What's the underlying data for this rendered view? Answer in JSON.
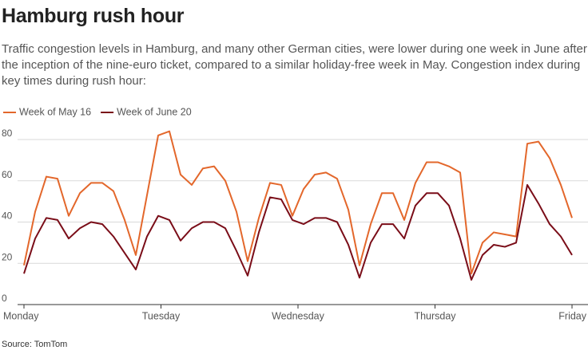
{
  "chart_data": {
    "type": "line",
    "title": "Hamburg rush hour",
    "subtitle": "Traffic congestion levels in Hamburg, and many other German cities, were lower during one week in June after the inception of the nine-euro ticket, compared to a similar holiday-free week in May. Congestion index during key times during rush hour:",
    "source": "Source: TomTom",
    "x": [
      0,
      1,
      2,
      3,
      4,
      5,
      6,
      7,
      8,
      9,
      10,
      11,
      12,
      13,
      14,
      15,
      16,
      17,
      18,
      19,
      20,
      21,
      22,
      23,
      24,
      25,
      26,
      27,
      28,
      29,
      30,
      31,
      32,
      33,
      34,
      35,
      36,
      37,
      38,
      39,
      40,
      41,
      42,
      43,
      44,
      45,
      46,
      47,
      48,
      49
    ],
    "series": [
      {
        "name": "Week of May 16",
        "color": "#e3672b",
        "values": [
          19,
          45,
          62,
          61,
          43,
          54,
          59,
          59,
          55,
          41,
          24,
          53,
          82,
          84,
          63,
          58,
          66,
          67,
          60,
          45,
          21,
          42,
          59,
          58,
          43,
          56,
          63,
          64,
          61,
          46,
          19,
          39,
          54,
          54,
          41,
          59,
          69,
          69,
          67,
          64,
          15,
          30,
          35,
          34,
          33,
          78,
          79,
          71,
          58,
          42
        ]
      },
      {
        "name": "Week of June 20",
        "color": "#7a0d18",
        "values": [
          15,
          32,
          42,
          41,
          32,
          37,
          40,
          39,
          33,
          25,
          17,
          33,
          43,
          41,
          31,
          37,
          40,
          40,
          37,
          26,
          14,
          35,
          52,
          51,
          41,
          39,
          42,
          42,
          40,
          29,
          13,
          30,
          39,
          39,
          32,
          48,
          54,
          54,
          48,
          32,
          12,
          24,
          29,
          28,
          30,
          58,
          49,
          39,
          33,
          24
        ]
      }
    ],
    "xlim": [
      0,
      49
    ],
    "xticks": [
      {
        "value": 0,
        "label": "Monday"
      },
      {
        "value": 12.25,
        "label": "Tuesday"
      },
      {
        "value": 24.5,
        "label": "Wednesday"
      },
      {
        "value": 36.75,
        "label": "Thursday"
      },
      {
        "value": 49,
        "label": "Friday"
      }
    ],
    "ylim": [
      0,
      80
    ],
    "yticks": [
      0,
      20,
      40,
      60,
      80
    ],
    "grid": true,
    "legend": "top-left"
  }
}
